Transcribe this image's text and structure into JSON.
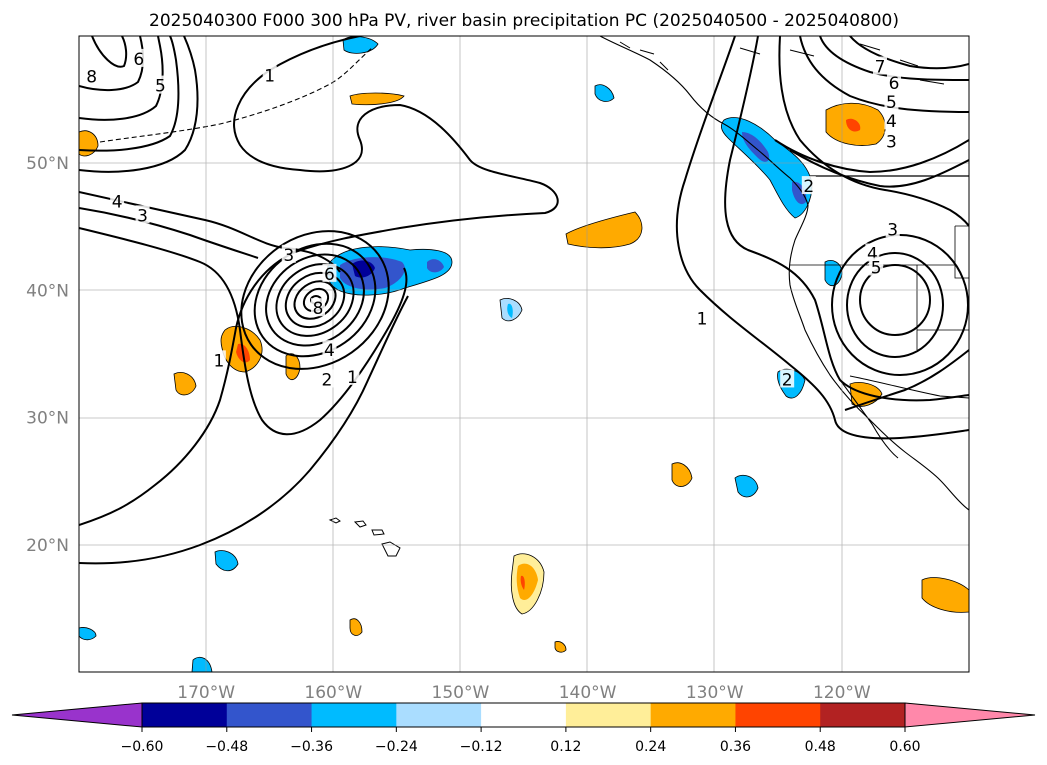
{
  "title": "2025040300 F000 300 hPa PV, river basin precipitation PC (2025040500 - 2025040800)",
  "map": {
    "lon_range": [
      -180,
      -110
    ],
    "lat_range": [
      10,
      60
    ],
    "lon_ticks": [
      {
        "lon": -170,
        "label": "170°W"
      },
      {
        "lon": -160,
        "label": "160°W"
      },
      {
        "lon": -150,
        "label": "150°W"
      },
      {
        "lon": -140,
        "label": "140°W"
      },
      {
        "lon": -130,
        "label": "130°W"
      },
      {
        "lon": -120,
        "label": "120°W"
      }
    ],
    "lat_ticks": [
      {
        "lat": 20,
        "label": "20°N"
      },
      {
        "lat": 30,
        "label": "30°N"
      },
      {
        "lat": 40,
        "label": "40°N"
      },
      {
        "lat": 50,
        "label": "50°N"
      }
    ],
    "grid": true,
    "tick_label_color": "#808080"
  },
  "colorbar": {
    "tick_labels": [
      "−0.60",
      "−0.48",
      "−0.36",
      "−0.24",
      "−0.12",
      "0.12",
      "0.24",
      "0.36",
      "0.48",
      "0.60"
    ],
    "colors": [
      "#9933cc",
      "#000099",
      "#3355cc",
      "#00bbff",
      "#aaddff",
      "#ffffff",
      "#ffee99",
      "#ffaa00",
      "#ff4400",
      "#b22222",
      "#ff88aa"
    ],
    "extend": "both"
  },
  "contour_labels": [
    {
      "text": "8",
      "lon": -179.0,
      "lat": 56.8
    },
    {
      "text": "6",
      "lon": -175.3,
      "lat": 58.2
    },
    {
      "text": "5",
      "lon": -173.6,
      "lat": 56.1
    },
    {
      "text": "1",
      "lon": -165.0,
      "lat": 56.9
    },
    {
      "text": "4",
      "lon": -177.0,
      "lat": 47.0
    },
    {
      "text": "3",
      "lon": -175.0,
      "lat": 45.9
    },
    {
      "text": "3",
      "lon": -163.5,
      "lat": 42.8
    },
    {
      "text": "6",
      "lon": -160.3,
      "lat": 41.3
    },
    {
      "text": "8",
      "lon": -161.2,
      "lat": 38.6
    },
    {
      "text": "4",
      "lon": -160.3,
      "lat": 35.3
    },
    {
      "text": "2",
      "lon": -160.5,
      "lat": 33.0
    },
    {
      "text": "1",
      "lon": -158.5,
      "lat": 33.2
    },
    {
      "text": "1",
      "lon": -169.0,
      "lat": 34.5
    },
    {
      "text": "1",
      "lon": -131.0,
      "lat": 37.8
    },
    {
      "text": "7",
      "lon": -117.0,
      "lat": 57.6
    },
    {
      "text": "6",
      "lon": -115.9,
      "lat": 56.3
    },
    {
      "text": "5",
      "lon": -116.1,
      "lat": 54.8
    },
    {
      "text": "4",
      "lon": -116.1,
      "lat": 53.3
    },
    {
      "text": "3",
      "lon": -116.1,
      "lat": 51.7
    },
    {
      "text": "2",
      "lon": -122.6,
      "lat": 48.2
    },
    {
      "text": "3",
      "lon": -116.0,
      "lat": 44.8
    },
    {
      "text": "4",
      "lon": -117.6,
      "lat": 42.9
    },
    {
      "text": "5",
      "lon": -117.3,
      "lat": 41.8
    },
    {
      "text": "2",
      "lon": -124.3,
      "lat": 33.0
    }
  ]
}
